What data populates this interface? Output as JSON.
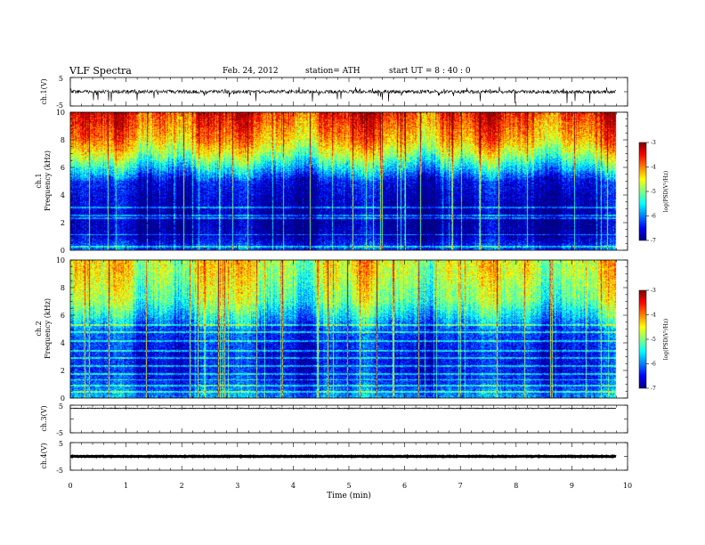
{
  "header": {
    "title": "VLF  Spectra",
    "date": "Feb. 24, 2012",
    "station": "station= ATH",
    "start": "start  UT  =  8  : 40 : 0"
  },
  "chart_data": [
    {
      "type": "line",
      "ylabel": "ch.1(V)",
      "ylim": [
        -5,
        5
      ],
      "yticks": [
        "5",
        "-5"
      ],
      "description_trace": "impulsive noisy waveform"
    },
    {
      "type": "heatmap",
      "ylabel_top": "ch.1",
      "ylabel": "Frequency  (kHz)",
      "ylim": [
        0,
        10
      ],
      "yticks": [
        "0",
        "2",
        "4",
        "6",
        "8",
        "10"
      ],
      "xlim": [
        0,
        10
      ],
      "colorbar": {
        "label": "log(PSD(V²/Hz)",
        "range": [
          -7,
          -3
        ],
        "ticks": [
          "-3",
          "-4",
          "-5",
          "-6",
          "-7"
        ]
      },
      "approx_profile_log_psd_by_khz": [
        {
          "f": 0,
          "v": -6.2
        },
        {
          "f": 1,
          "v": -6.8
        },
        {
          "f": 2,
          "v": -6.9
        },
        {
          "f": 3,
          "v": -6.8
        },
        {
          "f": 4,
          "v": -6.7
        },
        {
          "f": 5,
          "v": -6.5
        },
        {
          "f": 6,
          "v": -5.6
        },
        {
          "f": 7,
          "v": -4.8
        },
        {
          "f": 8,
          "v": -4.2
        },
        {
          "f": 9,
          "v": -3.9
        },
        {
          "f": 10,
          "v": -3.6
        }
      ]
    },
    {
      "type": "heatmap",
      "ylabel_top": "ch.2",
      "ylabel": "Frequency  (kHz)",
      "ylim": [
        0,
        10
      ],
      "yticks": [
        "0",
        "2",
        "4",
        "6",
        "8",
        "10"
      ],
      "xlim": [
        0,
        10
      ],
      "colorbar": {
        "label": "log(PSD(V²/Hz)",
        "range": [
          -7,
          -3
        ],
        "ticks": [
          "-3",
          "-4",
          "-5",
          "-6",
          "-7"
        ]
      },
      "approx_profile_log_psd_by_khz": [
        {
          "f": 0,
          "v": -5.9
        },
        {
          "f": 1,
          "v": -6.3
        },
        {
          "f": 2,
          "v": -6.5
        },
        {
          "f": 3,
          "v": -6.5
        },
        {
          "f": 4,
          "v": -6.4
        },
        {
          "f": 5,
          "v": -6.2
        },
        {
          "f": 6,
          "v": -5.6
        },
        {
          "f": 7,
          "v": -5.1
        },
        {
          "f": 8,
          "v": -4.9
        },
        {
          "f": 9,
          "v": -4.7
        },
        {
          "f": 10,
          "v": -4.6
        }
      ]
    },
    {
      "type": "line",
      "ylabel": "ch.3(V)",
      "ylim": [
        -5,
        5
      ],
      "yticks": [
        "5",
        "-5"
      ],
      "description_trace": "flat near 0 V"
    },
    {
      "type": "line",
      "ylabel": "ch.4(V)",
      "ylim": [
        -5,
        5
      ],
      "yticks": [
        "5",
        "-5"
      ],
      "description_trace": "flat thick line near 0 V"
    }
  ],
  "xaxis": {
    "label": "Time  (min)",
    "ticks": [
      "0",
      "1",
      "2",
      "3",
      "4",
      "5",
      "6",
      "7",
      "8",
      "9",
      "10"
    ],
    "xlim": [
      0,
      10
    ],
    "data_end": 9.8
  }
}
